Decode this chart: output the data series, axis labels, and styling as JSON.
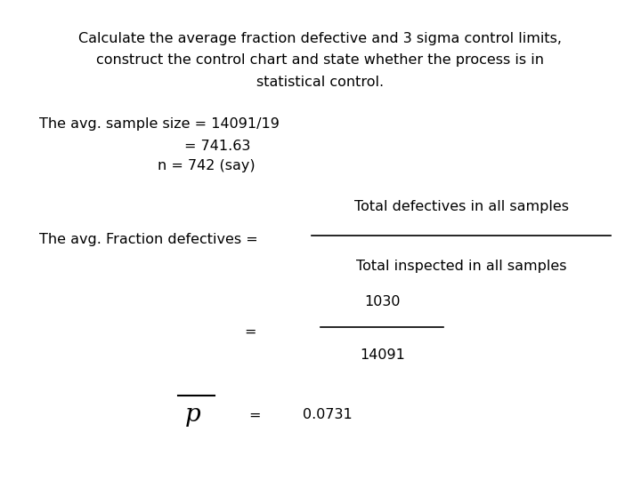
{
  "bg_color": "#ffffff",
  "title_line1": "Calculate the average fraction defective and 3 sigma control limits,",
  "title_line2": "construct the control chart and state whether the process is in",
  "title_line3": "statistical control.",
  "line1": "The avg. sample size = 14091/19",
  "line2": "= 741.63",
  "line3": "n = 742 (say)",
  "frac_label": "The avg. Fraction defectives =",
  "frac_num": "Total defectives in all samples",
  "frac_den": "Total inspected in all samples",
  "eq_label": "=",
  "num2": "1030",
  "den2": "14091",
  "p_result": "0.0731",
  "font_size_title": 11.5,
  "font_size_body": 11.5
}
